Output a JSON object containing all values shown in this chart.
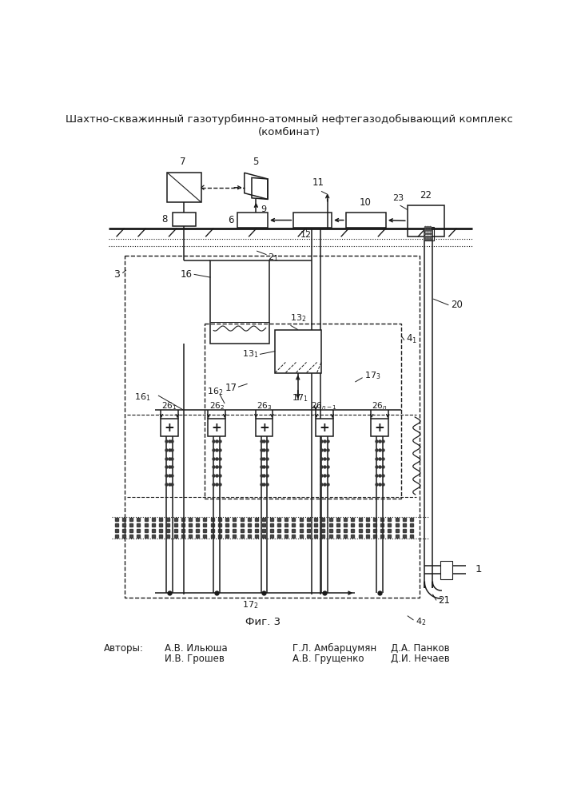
{
  "title_line1": "Шахтно-скважинный газотурбинно-атомный нефтегазодобывающий комплекс",
  "title_line2": "(комбинат)",
  "fig_label": "Фиг. 3",
  "authors_label": "Авторы:",
  "authors_row1": [
    "А.В. Ильюша",
    "Г.Л. Амбарцумян",
    "Д.А. Панков"
  ],
  "authors_row2": [
    "И.В. Грошев",
    "А.В. Грущенко",
    "Д.И. Нечаев"
  ],
  "bg_color": "#ffffff",
  "line_color": "#1a1a1a"
}
